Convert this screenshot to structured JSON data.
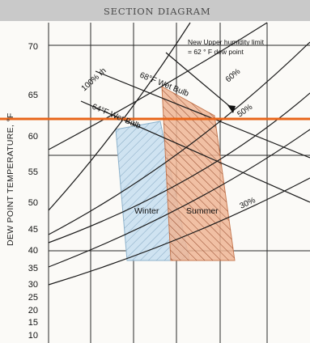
{
  "header": {
    "title": "SECTION DIAGRAM"
  },
  "axis": {
    "ylabel": "DEW POINT TEMPERATURE,  °F",
    "ticks": [
      "70",
      "65",
      "60",
      "55",
      "50",
      "45",
      "40",
      "35",
      "30",
      "25",
      "20",
      "15",
      "10"
    ]
  },
  "curves": {
    "rh100": "100% rh",
    "wb68": "68°F Wet Bulb",
    "wb64": "64°F Wet Bulb",
    "rh60": "60%",
    "rh50": "50%",
    "rh30": "30%"
  },
  "annotation": {
    "line1": "New Upper humidity limit",
    "line2": "= 62 ° F dew point"
  },
  "zones": {
    "winter": "Winter",
    "summer": "Summer"
  },
  "colors": {
    "limit_line": "#e8651a",
    "winter_fill": "#cfe3f1",
    "summer_fill": "#eeb595",
    "winter_hatch": "#7da2bd",
    "summer_hatch": "#8a3a1c"
  }
}
